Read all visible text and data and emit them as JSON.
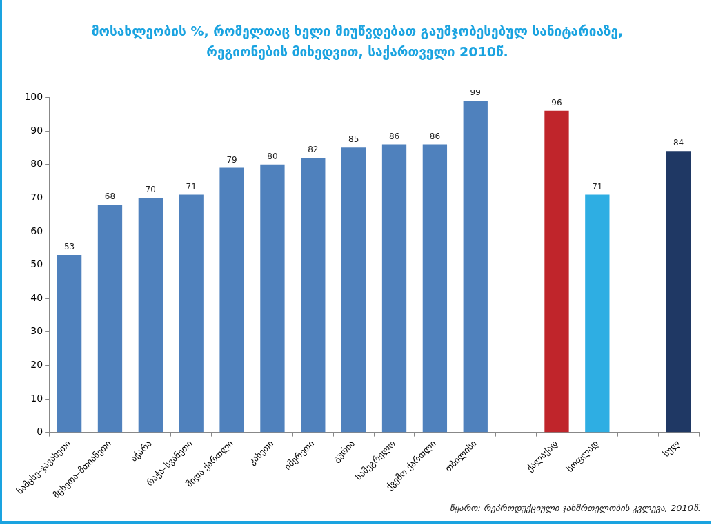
{
  "chart_data": {
    "type": "bar",
    "title": "მოსახლეობის %, რომელთაც ხელი მიუწვდებათ გაუმჯობესებულ სანიტარიაზე,\nრეგიონების მიხედვით, საქართველი 2010წ.",
    "categories": [
      "სამცხე–ჯავახეთი",
      "მცხეთა–მთიანეთი",
      "აჭარა",
      "რაჭა–სვანეთი",
      "შიდა ქართლი",
      "კახეთი",
      "იმერეთი",
      "გურია",
      "სამეგრელო",
      "ქვემო ქართლი",
      "თბილისი",
      null,
      "ქალაქად",
      "სოფლად",
      null,
      "სულ"
    ],
    "values": [
      53,
      68,
      70,
      71,
      79,
      80,
      82,
      85,
      86,
      86,
      99,
      null,
      96,
      71,
      null,
      84
    ],
    "colors": [
      "#4f81bd",
      "#4f81bd",
      "#4f81bd",
      "#4f81bd",
      "#4f81bd",
      "#4f81bd",
      "#4f81bd",
      "#4f81bd",
      "#4f81bd",
      "#4f81bd",
      "#4f81bd",
      "#4f81bd",
      "#c0252b",
      "#2eaee3",
      "#4f81bd",
      "#1f3864"
    ],
    "ylim": [
      0,
      100
    ],
    "yticks": [
      0,
      10,
      20,
      30,
      40,
      50,
      60,
      70,
      80,
      90,
      100
    ],
    "data_labels": true,
    "legend": false,
    "annotations": [
      "წყარო: რეპროდუქციული ჯანმრთელობის კვლევა, 2010წ."
    ]
  }
}
